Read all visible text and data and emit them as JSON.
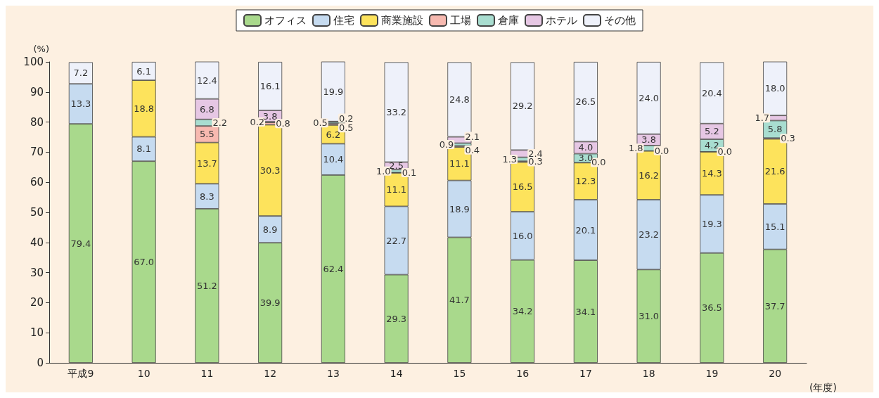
{
  "chart_data": {
    "type": "bar",
    "stacked": true,
    "ylabel": "(%)",
    "xlabel": "(年度)",
    "categories": [
      "平成9",
      "10",
      "11",
      "12",
      "13",
      "14",
      "15",
      "16",
      "17",
      "18",
      "19",
      "20"
    ],
    "series": [
      {
        "name": "オフィス",
        "color": "#a9d98c",
        "values": [
          79.4,
          67.0,
          51.2,
          39.9,
          62.4,
          29.3,
          41.7,
          34.2,
          34.1,
          31.0,
          36.5,
          37.7
        ],
        "value_labels": [
          "79.4",
          "67.0",
          "51.2",
          "39.9",
          "62.4",
          "29.3",
          "41.7",
          "34.2",
          "34.1",
          "31.0",
          "36.5",
          "37.7"
        ]
      },
      {
        "name": "住宅",
        "color": "#c6dbf0",
        "values": [
          13.3,
          8.1,
          8.3,
          8.9,
          10.4,
          22.7,
          18.9,
          16.0,
          20.1,
          23.2,
          19.3,
          15.1
        ],
        "value_labels": [
          "13.3",
          "8.1",
          "8.3",
          "8.9",
          "10.4",
          "22.7",
          "18.9",
          "16.0",
          "20.1",
          "23.2",
          "19.3",
          "15.1"
        ]
      },
      {
        "name": "商業施設",
        "color": "#fde35c",
        "values": [
          null,
          18.8,
          13.7,
          30.3,
          6.2,
          11.1,
          11.1,
          16.5,
          12.3,
          16.2,
          14.3,
          21.6
        ],
        "value_labels": [
          null,
          "18.8",
          "13.7",
          "30.3",
          "6.2",
          "11.1",
          "11.1",
          "16.5",
          "12.3",
          "16.2",
          "14.3",
          "21.6"
        ]
      },
      {
        "name": "工場",
        "color": "#f7b9b0",
        "values": [
          null,
          null,
          5.5,
          0.8,
          0.5,
          0.1,
          0.4,
          0.3,
          0.0,
          0.0,
          0.0,
          0.3
        ],
        "value_labels": [
          null,
          null,
          "5.5",
          "0.8",
          "0.5",
          "0.1",
          "0.4",
          "0.3",
          "0.0",
          "0.0",
          "0.0",
          "0.3"
        ]
      },
      {
        "name": "倉庫",
        "color": "#a8ddd0",
        "values": [
          null,
          null,
          2.2,
          0.2,
          0.5,
          1.0,
          0.9,
          1.3,
          3.0,
          1.8,
          4.2,
          5.8
        ],
        "value_labels": [
          null,
          null,
          "2.2",
          "0.2",
          "0.5",
          "1.0",
          "0.9",
          "1.3",
          "3.0",
          "1.8",
          "4.2",
          "5.8"
        ]
      },
      {
        "name": "ホテル",
        "color": "#e6c7e4",
        "values": [
          null,
          null,
          6.8,
          3.8,
          0.2,
          2.5,
          2.1,
          2.4,
          4.0,
          3.8,
          5.2,
          1.7
        ],
        "value_labels": [
          null,
          null,
          "6.8",
          "3.8",
          "0.2",
          "2.5",
          "2.1",
          "2.4",
          "4.0",
          "3.8",
          "5.2",
          "1.7"
        ]
      },
      {
        "name": "その他",
        "color": "#eef1fa",
        "values": [
          7.2,
          6.1,
          12.4,
          16.1,
          19.9,
          33.2,
          24.8,
          29.2,
          26.5,
          24.0,
          20.4,
          18.0
        ],
        "value_labels": [
          "7.2",
          "6.1",
          "12.4",
          "16.1",
          "19.9",
          "33.2",
          "24.8",
          "29.2",
          "26.5",
          "24.0",
          "20.4",
          "18.0"
        ]
      }
    ],
    "ylim": [
      0,
      100
    ],
    "yticks": [
      0,
      10,
      20,
      30,
      40,
      50,
      60,
      70,
      80,
      90,
      100
    ],
    "grid": false,
    "legend": "top"
  }
}
